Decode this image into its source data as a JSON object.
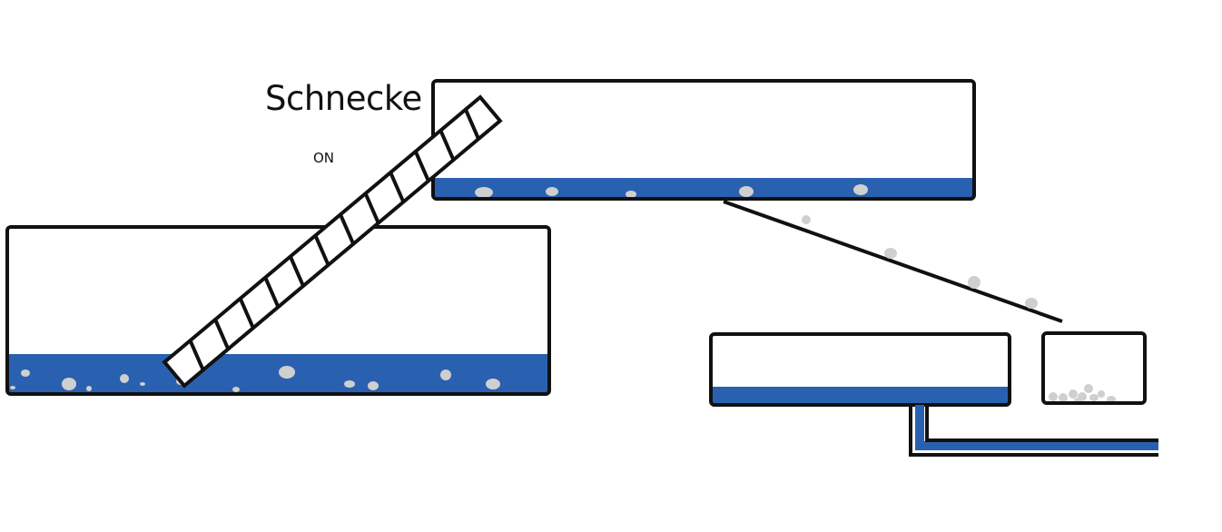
{
  "labels": {
    "screw_label": "Schnecke",
    "screw_state": "ON"
  },
  "colors": {
    "water": "#2961b0",
    "outline": "#111111",
    "particle": "#cfcfcf",
    "background": "#ffffff"
  }
}
